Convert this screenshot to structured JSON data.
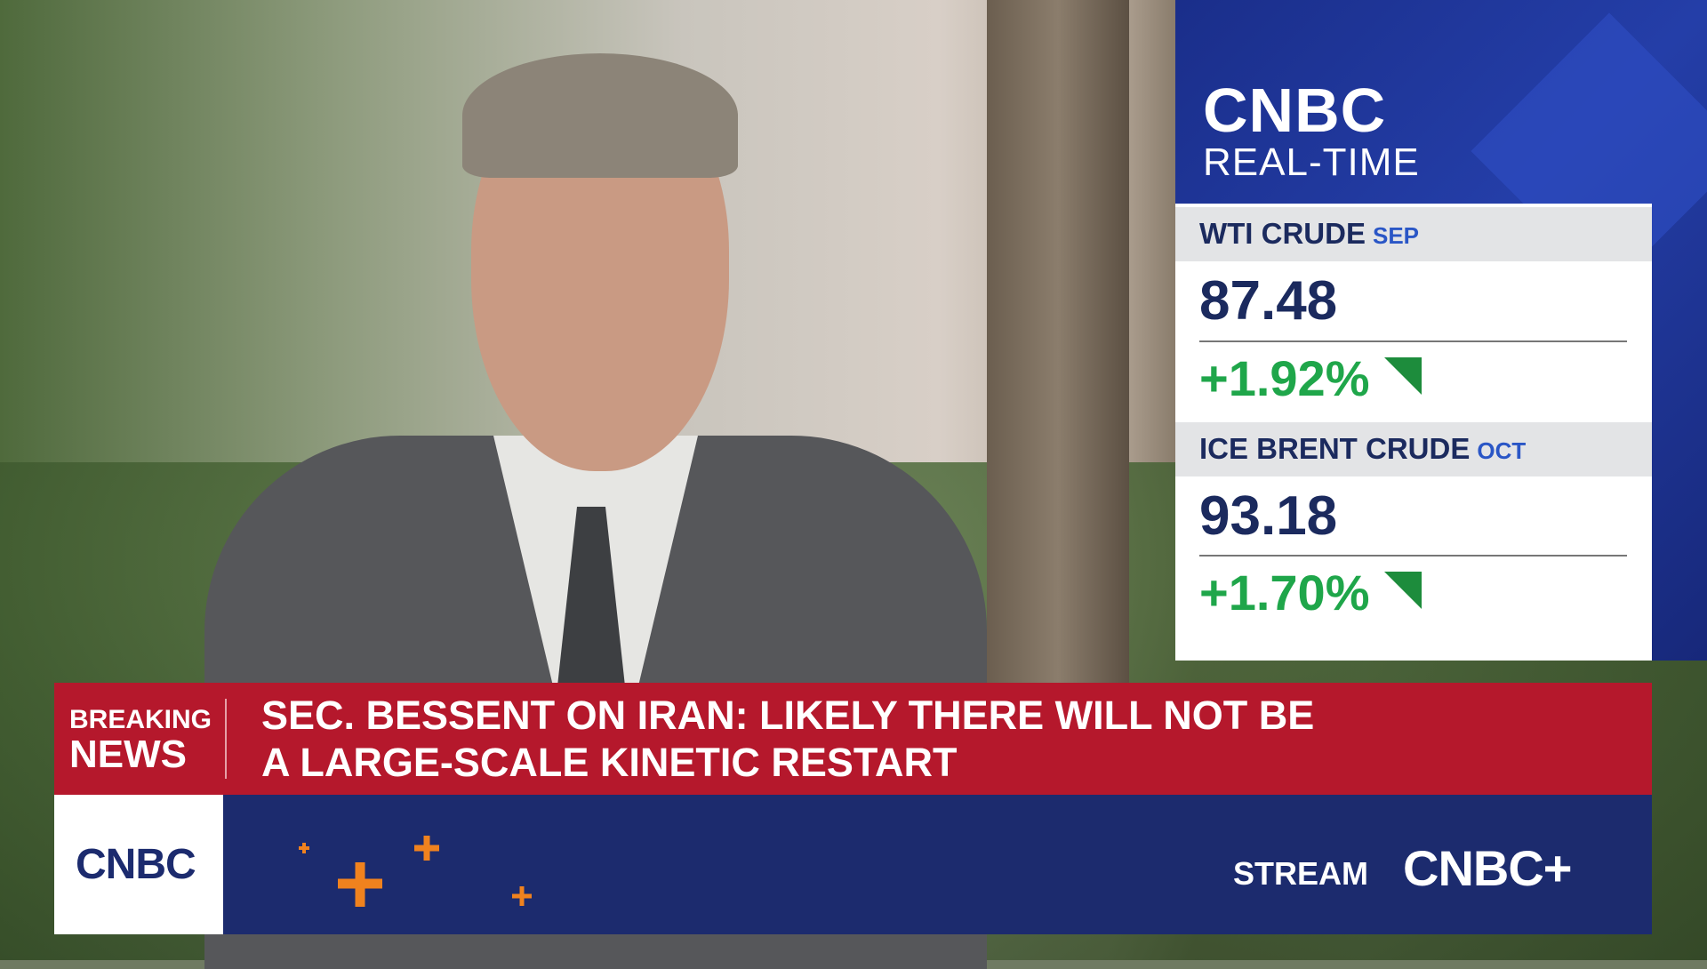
{
  "sidebar": {
    "brand": "CNBC",
    "subtitle": "REAL-TIME",
    "quotes": [
      {
        "name": "WTI CRUDE",
        "month": "SEP",
        "price": "87.48",
        "change": "+1.92%"
      },
      {
        "name": "ICE BRENT CRUDE",
        "month": "OCT",
        "price": "93.18",
        "change": "+1.70%"
      }
    ]
  },
  "banner": {
    "label": [
      "BREAKING",
      "NEWS"
    ],
    "headline": [
      "SEC. BESSENT ON IRAN: LIKELY THERE WILL NOT BE",
      "A LARGE-SCALE KINETIC RESTART"
    ]
  },
  "footer": {
    "logo": "CNBC",
    "stream": "STREAM",
    "stream_brand": "CNBC+"
  }
}
